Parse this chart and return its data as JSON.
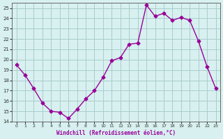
{
  "x": [
    0,
    1,
    2,
    3,
    4,
    5,
    6,
    7,
    8,
    9,
    10,
    11,
    12,
    13,
    14,
    15,
    16,
    17,
    18,
    19,
    20,
    21,
    22,
    23
  ],
  "y": [
    19.5,
    18.5,
    17.2,
    15.8,
    15.0,
    14.9,
    14.3,
    15.2,
    16.2,
    17.0,
    18.3,
    19.9,
    20.2,
    21.5,
    21.6,
    25.3,
    24.2,
    24.5,
    23.8,
    24.1,
    23.8,
    21.8,
    19.3,
    17.2
  ],
  "xlim": [
    -0.5,
    23.5
  ],
  "ylim": [
    14,
    25.5
  ],
  "yticks": [
    14,
    15,
    16,
    17,
    18,
    19,
    20,
    21,
    22,
    23,
    24,
    25
  ],
  "xticks": [
    0,
    1,
    2,
    3,
    4,
    5,
    6,
    7,
    8,
    9,
    10,
    11,
    12,
    13,
    14,
    15,
    16,
    17,
    18,
    19,
    20,
    21,
    22,
    23
  ],
  "xlabel": "Windchill (Refroidissement éolien,°C)",
  "line_color": "#990099",
  "marker": "D",
  "marker_size": 2.5,
  "bg_color": "#d8f0f0",
  "grid_color": "#aacccc"
}
